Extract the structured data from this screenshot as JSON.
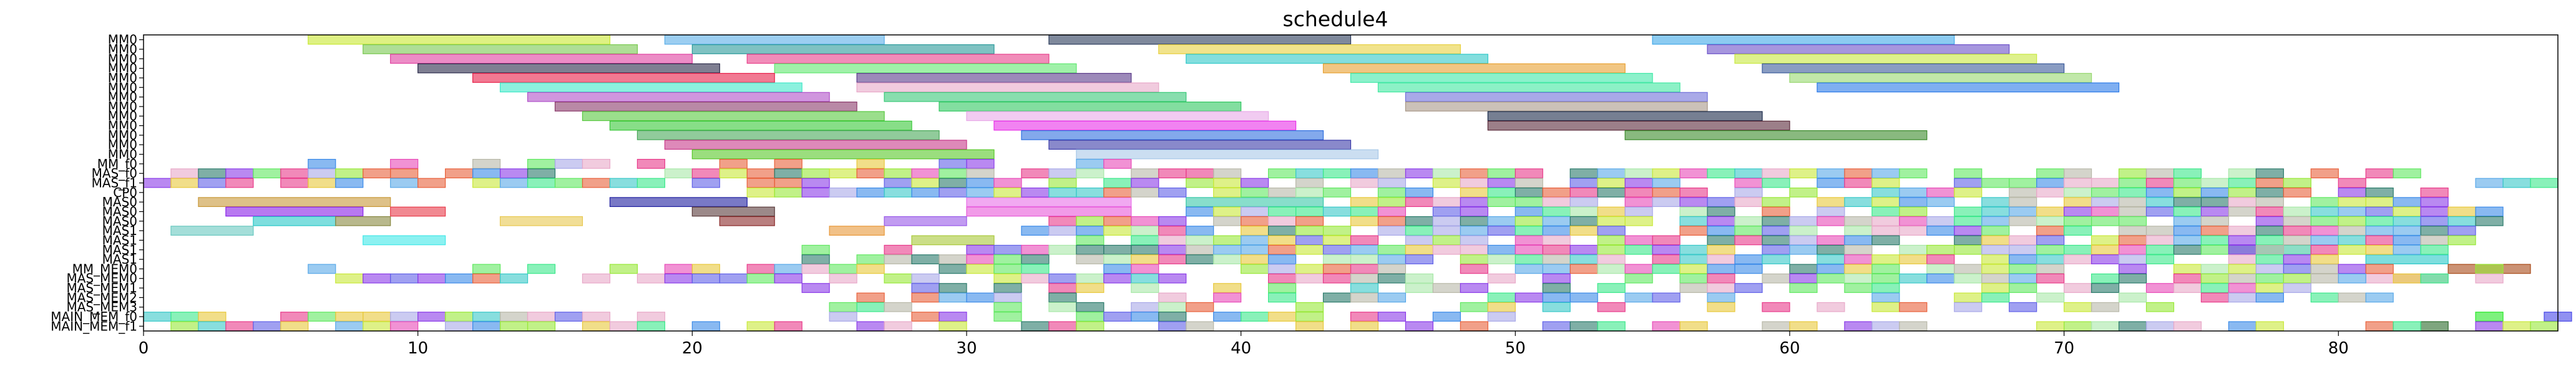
{
  "chart_data": {
    "type": "gantt",
    "title": "schedule4",
    "xlabel": "",
    "ylabel": "",
    "xlim": [
      0,
      88
    ],
    "x_ticks": [
      0,
      10,
      20,
      30,
      40,
      50,
      60,
      70,
      80
    ],
    "grid": false,
    "rows": [
      "MM0",
      "MM0",
      "MM0",
      "MM0",
      "MM0",
      "MM0",
      "MM0",
      "MM0",
      "MM0",
      "MM0",
      "MM0",
      "MM0",
      "MM0",
      "MM_f0",
      "MAS_f0",
      "MAS_f1",
      "CP0",
      "MAS0",
      "MAS0",
      "MAS0",
      "MAS1",
      "MAS1",
      "MAS1",
      "MAS1",
      "MM_MEM0",
      "MAS_MEM0",
      "MAS_MEM1",
      "MAS_MEM2",
      "MAS_MEM3",
      "MAIN_MEM_f0",
      "MAIN_MEM_f1"
    ],
    "tasks": [
      {
        "row": 0,
        "start": 6,
        "end": 17,
        "color": "#c8e830"
      },
      {
        "row": 0,
        "start": 19,
        "end": 27,
        "color": "#5aaee8"
      },
      {
        "row": 0,
        "start": 33,
        "end": 44,
        "color": "#2a3a5a"
      },
      {
        "row": 0,
        "start": 55,
        "end": 66,
        "color": "#40a8e8"
      },
      {
        "row": 1,
        "start": 8,
        "end": 18,
        "color": "#78c850"
      },
      {
        "row": 1,
        "start": 20,
        "end": 31,
        "color": "#2a9a9a"
      },
      {
        "row": 1,
        "start": 37,
        "end": 48,
        "color": "#e8d040"
      },
      {
        "row": 1,
        "start": 57,
        "end": 68,
        "color": "#6a50c8"
      },
      {
        "row": 2,
        "start": 9,
        "end": 20,
        "color": "#e040a0"
      },
      {
        "row": 2,
        "start": 22,
        "end": 33,
        "color": "#e8408a"
      },
      {
        "row": 2,
        "start": 38,
        "end": 49,
        "color": "#30c8c8"
      },
      {
        "row": 2,
        "start": 58,
        "end": 69,
        "color": "#c8e840"
      },
      {
        "row": 3,
        "start": 10,
        "end": 21,
        "color": "#2a2a4a"
      },
      {
        "row": 3,
        "start": 23,
        "end": 34,
        "color": "#60e870"
      },
      {
        "row": 3,
        "start": 43,
        "end": 54,
        "color": "#e8a030"
      },
      {
        "row": 3,
        "start": 59,
        "end": 70,
        "color": "#3a5a9a"
      },
      {
        "row": 4,
        "start": 12,
        "end": 23,
        "color": "#e8204a"
      },
      {
        "row": 4,
        "start": 26,
        "end": 36,
        "color": "#5a3a8a"
      },
      {
        "row": 4,
        "start": 44,
        "end": 55,
        "color": "#40e8a8"
      },
      {
        "row": 4,
        "start": 60,
        "end": 71,
        "color": "#98d870"
      },
      {
        "row": 5,
        "start": 13,
        "end": 24,
        "color": "#40e8c8"
      },
      {
        "row": 5,
        "start": 26,
        "end": 37,
        "color": "#e8a8c8"
      },
      {
        "row": 5,
        "start": 45,
        "end": 56,
        "color": "#40e8a0"
      },
      {
        "row": 5,
        "start": 61,
        "end": 72,
        "color": "#2a7ae8"
      },
      {
        "row": 6,
        "start": 14,
        "end": 25,
        "color": "#b050c8"
      },
      {
        "row": 6,
        "start": 27,
        "end": 38,
        "color": "#38c878"
      },
      {
        "row": 6,
        "start": 46,
        "end": 57,
        "color": "#7070d8"
      },
      {
        "row": 7,
        "start": 15,
        "end": 26,
        "color": "#8a3a6a"
      },
      {
        "row": 7,
        "start": 29,
        "end": 40,
        "color": "#30c860"
      },
      {
        "row": 7,
        "start": 46,
        "end": 57,
        "color": "#a89888"
      },
      {
        "row": 8,
        "start": 16,
        "end": 27,
        "color": "#58c840"
      },
      {
        "row": 8,
        "start": 30,
        "end": 41,
        "color": "#e8a8e8"
      },
      {
        "row": 8,
        "start": 49,
        "end": 59,
        "color": "#1a2a4a"
      },
      {
        "row": 9,
        "start": 17,
        "end": 28,
        "color": "#38c838"
      },
      {
        "row": 9,
        "start": 31,
        "end": 42,
        "color": "#e830e8"
      },
      {
        "row": 9,
        "start": 49,
        "end": 60,
        "color": "#5a2a3a"
      },
      {
        "row": 10,
        "start": 18,
        "end": 29,
        "color": "#48a858"
      },
      {
        "row": 10,
        "start": 32,
        "end": 43,
        "color": "#3070e0"
      },
      {
        "row": 10,
        "start": 54,
        "end": 65,
        "color": "#3a8a2a"
      },
      {
        "row": 11,
        "start": 19,
        "end": 30,
        "color": "#c83a8a"
      },
      {
        "row": 11,
        "start": 33,
        "end": 44,
        "color": "#3a3aa8"
      },
      {
        "row": 12,
        "start": 20,
        "end": 31,
        "color": "#58c828"
      },
      {
        "row": 12,
        "start": 34,
        "end": 45,
        "color": "#a8c8e8"
      },
      {
        "row": 17,
        "start": 2,
        "end": 9,
        "color": "#c89838"
      },
      {
        "row": 17,
        "start": 17,
        "end": 22,
        "color": "#2020a0"
      },
      {
        "row": 17,
        "start": 30,
        "end": 36,
        "color": "#e870e8"
      },
      {
        "row": 17,
        "start": 38,
        "end": 43,
        "color": "#38c8a8"
      },
      {
        "row": 18,
        "start": 3,
        "end": 8,
        "color": "#8820e8"
      },
      {
        "row": 18,
        "start": 9,
        "end": 11,
        "color": "#e83a4a"
      },
      {
        "row": 18,
        "start": 20,
        "end": 23,
        "color": "#5a3a3a"
      },
      {
        "row": 18,
        "start": 30,
        "end": 36,
        "color": "#e858d8"
      },
      {
        "row": 19,
        "start": 4,
        "end": 7,
        "color": "#28c8c8"
      },
      {
        "row": 19,
        "start": 7,
        "end": 9,
        "color": "#888840"
      },
      {
        "row": 19,
        "start": 13,
        "end": 16,
        "color": "#e8c850"
      },
      {
        "row": 19,
        "start": 21,
        "end": 23,
        "color": "#8a2a2a"
      },
      {
        "row": 19,
        "start": 27,
        "end": 30,
        "color": "#9858e8"
      },
      {
        "row": 20,
        "start": 1,
        "end": 4,
        "color": "#68c8c0"
      },
      {
        "row": 20,
        "start": 25,
        "end": 27,
        "color": "#e89838"
      },
      {
        "row": 21,
        "start": 8,
        "end": 11,
        "color": "#40e8e8"
      },
      {
        "row": 21,
        "start": 28,
        "end": 31,
        "color": "#a8c838"
      },
      {
        "row": 22,
        "start": 76,
        "end": 79,
        "color": "#40c8a0"
      },
      {
        "row": 23,
        "start": 81,
        "end": 84,
        "color": "#28c8c8"
      },
      {
        "row": 24,
        "start": 84,
        "end": 87,
        "color": "#a84a18"
      },
      {
        "row": 25,
        "start": 81,
        "end": 84,
        "color": "#e8a8c8"
      },
      {
        "row": 29,
        "start": 87.5,
        "end": 88.5,
        "color": "#4848e8"
      },
      {
        "row": 29,
        "start": 85,
        "end": 86,
        "color": "#28e828"
      },
      {
        "row": 30,
        "start": 83,
        "end": 84,
        "color": "#2a6a2a"
      }
    ],
    "filler_seed": 7
  }
}
